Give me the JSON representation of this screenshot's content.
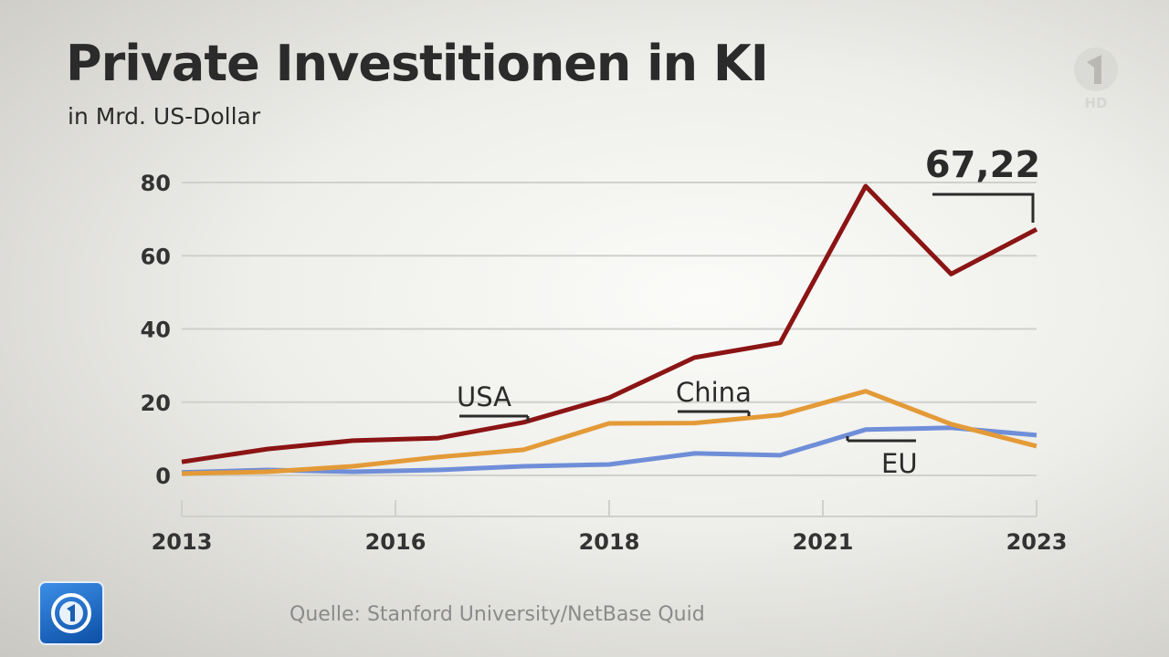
{
  "header": {
    "title": "Private Investitionen in KI",
    "subtitle": "in Mrd. US-Dollar"
  },
  "source": "Quelle: Stanford University/NetBase Quid",
  "branding": {
    "channel_logo": "ARD 1",
    "channel_hd": "HD",
    "tagesschau_logo": "tagesschau-1-icon"
  },
  "chart_data": {
    "type": "line",
    "title": "Private Investitionen in KI",
    "subtitle": "in Mrd. US-Dollar",
    "x": [
      2013,
      2014,
      2015,
      2016,
      2017,
      2018,
      2019,
      2020,
      2021,
      2022,
      2023
    ],
    "xticks": [
      {
        "value": 2013,
        "label": "2013"
      },
      {
        "value": 2015.5,
        "label": "2016"
      },
      {
        "value": 2018,
        "label": "2018"
      },
      {
        "value": 2020.5,
        "label": "2021"
      },
      {
        "value": 2023,
        "label": "2023"
      }
    ],
    "ylim": [
      0,
      80
    ],
    "yticks": [
      0,
      20,
      40,
      60,
      80
    ],
    "grid": true,
    "series": [
      {
        "name": "USA",
        "color": "#8b1414",
        "values": [
          3.7,
          7.2,
          9.5,
          10.2,
          14.5,
          21.2,
          32.2,
          36.2,
          79,
          55,
          67.22
        ]
      },
      {
        "name": "China",
        "color": "#e39a37",
        "values": [
          0.5,
          1,
          2.5,
          5,
          7,
          14.2,
          14.3,
          16.5,
          23,
          14,
          8
        ]
      },
      {
        "name": "EU",
        "color": "#6f8ed8",
        "values": [
          0.8,
          1.5,
          1,
          1.5,
          2.5,
          3,
          6,
          5.5,
          12.5,
          13,
          11
        ]
      }
    ],
    "annotation": {
      "label": "67,22",
      "year": 2023
    }
  }
}
